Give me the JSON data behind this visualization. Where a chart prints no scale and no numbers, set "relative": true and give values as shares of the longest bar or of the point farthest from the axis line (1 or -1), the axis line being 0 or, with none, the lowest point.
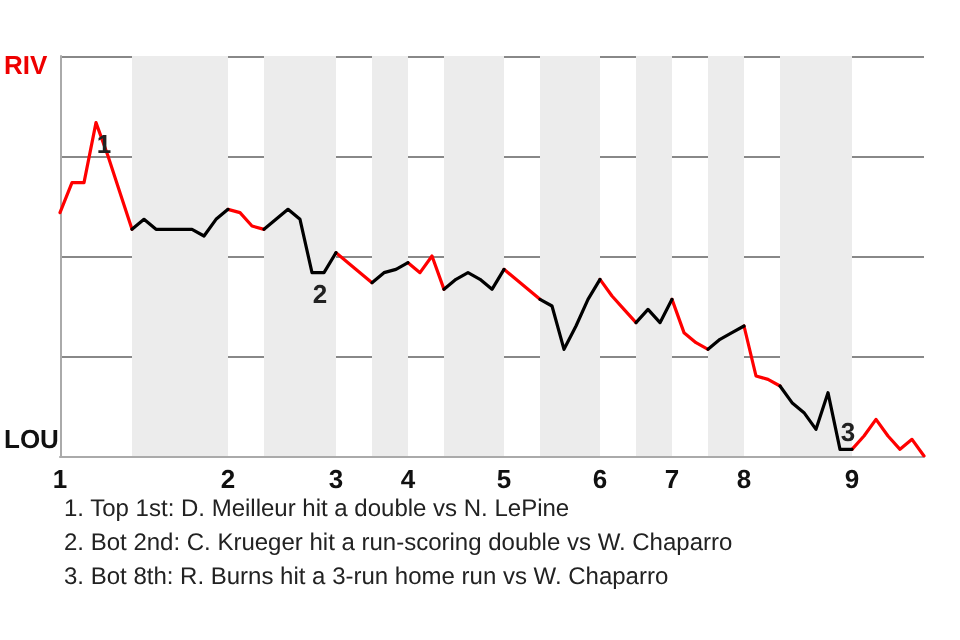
{
  "chart_data": {
    "type": "line",
    "relative": true,
    "categories": [
      "1",
      null,
      null,
      null,
      null,
      null,
      null,
      null,
      null,
      null,
      null,
      null,
      null,
      null,
      "2",
      null,
      null,
      null,
      null,
      null,
      null,
      null,
      null,
      "3",
      null,
      null,
      null,
      null,
      null,
      "4",
      null,
      null,
      null,
      null,
      null,
      null,
      null,
      "5",
      null,
      null,
      null,
      null,
      null,
      null,
      null,
      "6",
      null,
      null,
      null,
      null,
      null,
      "7",
      null,
      null,
      null,
      null,
      null,
      "8",
      null,
      null,
      null,
      null,
      null,
      null,
      null,
      null,
      "9",
      null,
      null,
      null,
      null,
      null,
      null
    ],
    "series": [
      {
        "color": "#ff0000",
        "values": [
          0.73,
          0.82,
          0.82,
          1,
          0.9,
          0.79,
          0.68,
          null,
          null,
          null,
          null,
          null,
          null,
          null,
          0.74,
          0.73,
          0.69,
          0.68,
          null,
          null,
          null,
          null,
          null,
          0.61,
          0.58,
          0.55,
          0.52,
          null,
          null,
          0.58,
          0.55,
          0.6,
          0.5,
          null,
          null,
          null,
          null,
          0.56,
          0.53,
          0.5,
          0.47,
          null,
          null,
          null,
          null,
          0.53,
          0.48,
          0.44,
          0.4,
          null,
          null,
          0.47,
          0.37,
          0.34,
          0.32,
          null,
          null,
          0.39,
          0.24,
          0.23,
          0.21,
          null,
          null,
          null,
          null,
          null,
          0.02,
          0.06,
          0.11,
          0.06,
          0.02,
          0.05,
          0
        ]
      },
      {
        "color": "#000000",
        "values": [
          null,
          null,
          null,
          null,
          null,
          null,
          0.68,
          0.71,
          0.68,
          0.68,
          0.68,
          0.68,
          0.66,
          0.71,
          0.74,
          null,
          null,
          0.68,
          0.71,
          0.74,
          0.71,
          0.55,
          0.55,
          0.61,
          null,
          null,
          0.52,
          0.55,
          0.56,
          0.58,
          null,
          null,
          0.5,
          0.53,
          0.55,
          0.53,
          0.5,
          0.56,
          null,
          null,
          0.47,
          0.45,
          0.32,
          0.39,
          0.47,
          0.53,
          null,
          null,
          0.4,
          0.44,
          0.4,
          0.47,
          null,
          null,
          0.32,
          0.35,
          0.37,
          0.39,
          null,
          null,
          0.21,
          0.16,
          0.13,
          0.08,
          0.19,
          0.02,
          0.02,
          null,
          null,
          null,
          null,
          null,
          null
        ]
      }
    ],
    "grid": "y",
    "marker": "none",
    "annotations": [
      "RIV",
      "LOU",
      {
        "text": "1",
        "y": 1
      },
      {
        "text": "2",
        "y": 0.55
      },
      {
        "text": "3",
        "y": 0.02
      },
      "1. Top 1st: D. Meilleur hit a double vs N. LePine",
      "2. Bot 2nd: C. Krueger hit a run-scoring double vs W. Chaparro",
      "3. Bot 8th: R. Burns hit a 3-run home run vs W. Chaparro"
    ]
  }
}
